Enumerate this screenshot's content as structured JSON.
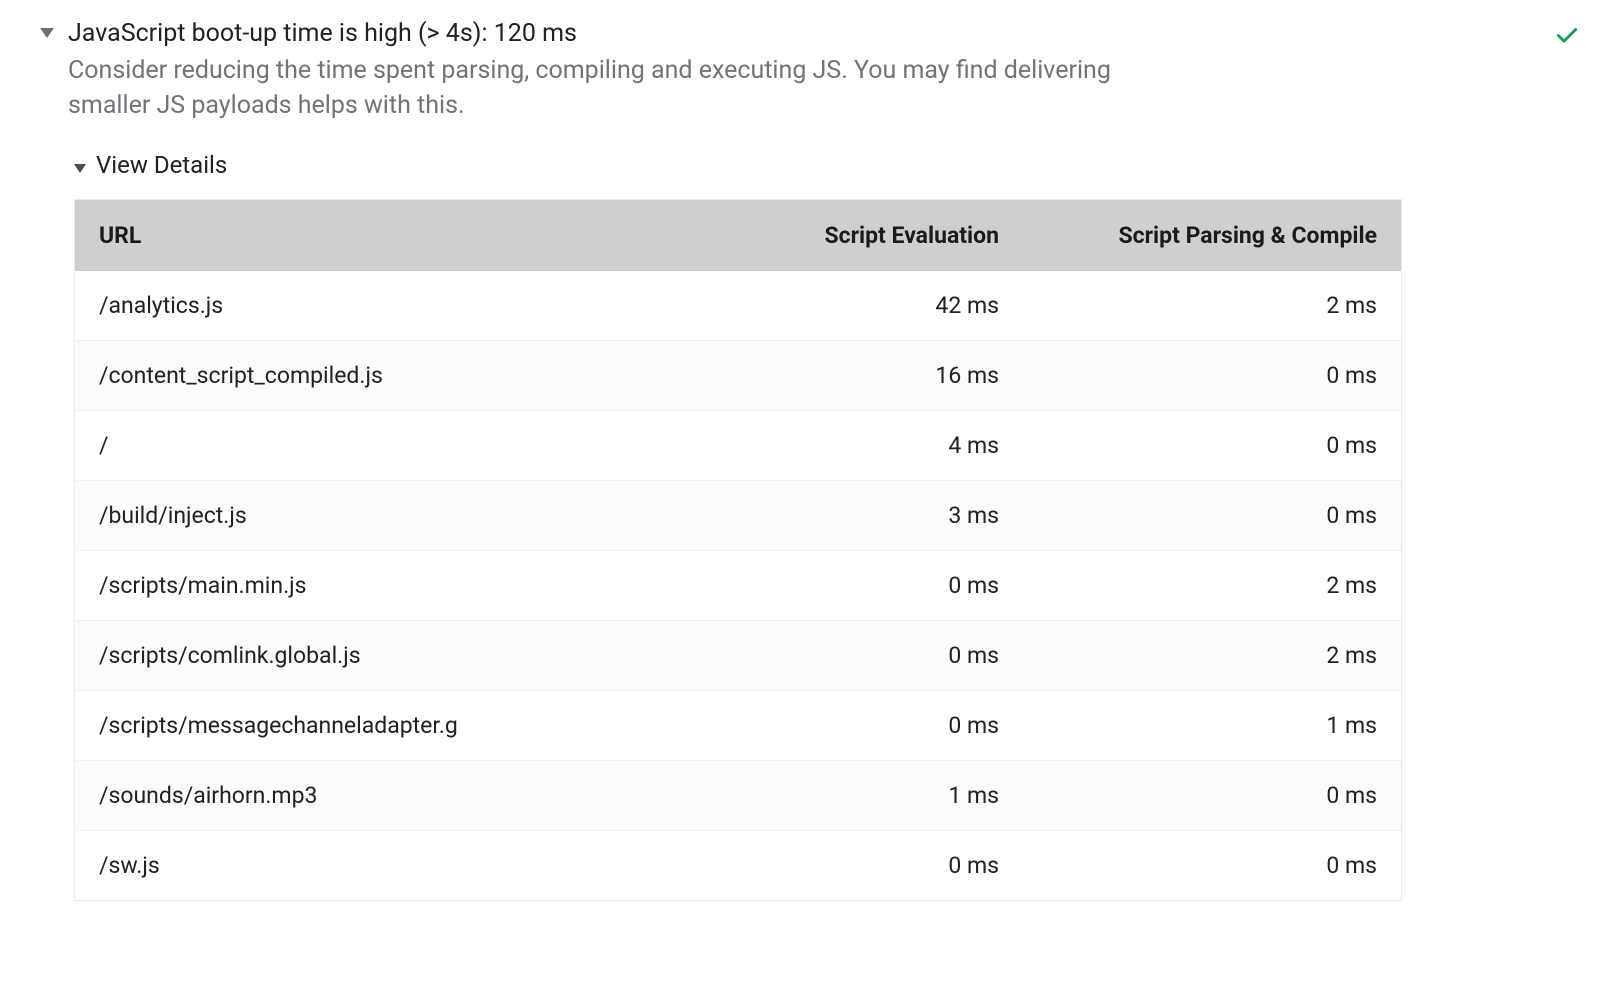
{
  "audit": {
    "title": "JavaScript boot-up time is high (> 4s): 120 ms",
    "description": "Consider reducing the time spent parsing, compiling and executing JS. You may find delivering smaller JS payloads helps with this.",
    "status_color": "#0f9d58",
    "details_label": "View Details",
    "table": {
      "header_bg": "#cfcfcf",
      "row_alt_bg": "#fbfbfb",
      "border_color": "#ebebeb",
      "columns": [
        "URL",
        "Script Evaluation",
        "Script Parsing & Compile"
      ],
      "rows": [
        {
          "url": "/analytics.js",
          "eval": "42 ms",
          "parse": "2 ms"
        },
        {
          "url": "/content_script_compiled.js",
          "eval": "16 ms",
          "parse": "0 ms"
        },
        {
          "url": "/",
          "eval": "4 ms",
          "parse": "0 ms"
        },
        {
          "url": "/build/inject.js",
          "eval": "3 ms",
          "parse": "0 ms"
        },
        {
          "url": "/scripts/main.min.js",
          "eval": "0 ms",
          "parse": "2 ms"
        },
        {
          "url": "/scripts/comlink.global.js",
          "eval": "0 ms",
          "parse": "2 ms"
        },
        {
          "url": "/scripts/messagechanneladapter.g",
          "eval": "0 ms",
          "parse": "1 ms"
        },
        {
          "url": "/sounds/airhorn.mp3",
          "eval": "1 ms",
          "parse": "0 ms"
        },
        {
          "url": "/sw.js",
          "eval": "0 ms",
          "parse": "0 ms"
        }
      ]
    }
  }
}
